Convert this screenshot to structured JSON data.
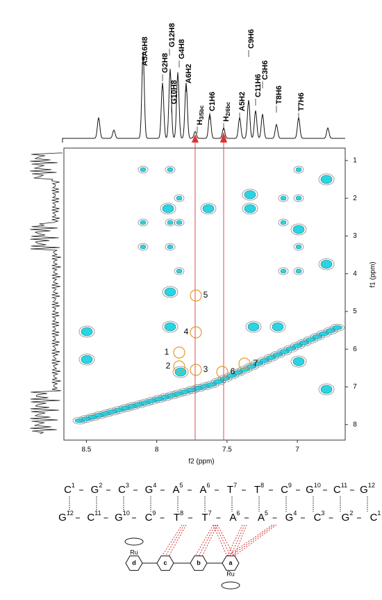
{
  "chart_data": {
    "type": "nmr2d",
    "xlabel": "f2 (ppm)",
    "ylabel": "f1 (ppm)",
    "xlim": [
      8.66,
      6.66
    ],
    "ylim": [
      0.67,
      8.41
    ],
    "xticks": [
      8.5,
      8.0,
      7.5,
      7.0
    ],
    "yticks": [
      1,
      2,
      3,
      4,
      5,
      6,
      7,
      8
    ],
    "peak_labels": [
      {
        "main": "A5A6H8"
      },
      {
        "main": "G2H8"
      },
      {
        "main": "G10H8"
      },
      {
        "main": "G12H8"
      },
      {
        "main": "G4H8"
      },
      {
        "main": "A6H2"
      },
      {
        "main": "H",
        "sub": "3/5bc"
      },
      {
        "main": "C1H6"
      },
      {
        "main": "H",
        "sub": "2/6bc"
      },
      {
        "main": "A5H2"
      },
      {
        "main": "C9H6"
      },
      {
        "main": "C11H6"
      },
      {
        "main": "C3H6"
      },
      {
        "main": "T8H6"
      },
      {
        "main": "T7H6"
      }
    ],
    "cross_peaks": [
      "1",
      "2",
      "3",
      "4",
      "5",
      "6",
      "7"
    ],
    "sequence": {
      "strand1": [
        [
          "C",
          "1"
        ],
        [
          "G",
          "2"
        ],
        [
          "C",
          "3"
        ],
        [
          "G",
          "4"
        ],
        [
          "A",
          "5"
        ],
        [
          "A",
          "6"
        ],
        [
          "T",
          "7"
        ],
        [
          "T",
          "8"
        ],
        [
          "C",
          "9"
        ],
        [
          "G",
          "10"
        ],
        [
          "C",
          "11"
        ],
        [
          "G",
          "12"
        ]
      ],
      "strand2": [
        [
          "G",
          "12"
        ],
        [
          "C",
          "11"
        ],
        [
          "G",
          "10"
        ],
        [
          "C",
          "9"
        ],
        [
          "T",
          "8"
        ],
        [
          "T",
          "7"
        ],
        [
          "A",
          "6"
        ],
        [
          "A",
          "5"
        ],
        [
          "G",
          "4"
        ],
        [
          "C",
          "3"
        ],
        [
          "G",
          "2"
        ],
        [
          "C",
          "1"
        ]
      ]
    },
    "complex_labels": {
      "metal_top": "Ru",
      "metal_bottom": "Ru",
      "rings": [
        "a",
        "b",
        "c",
        "d"
      ]
    }
  }
}
